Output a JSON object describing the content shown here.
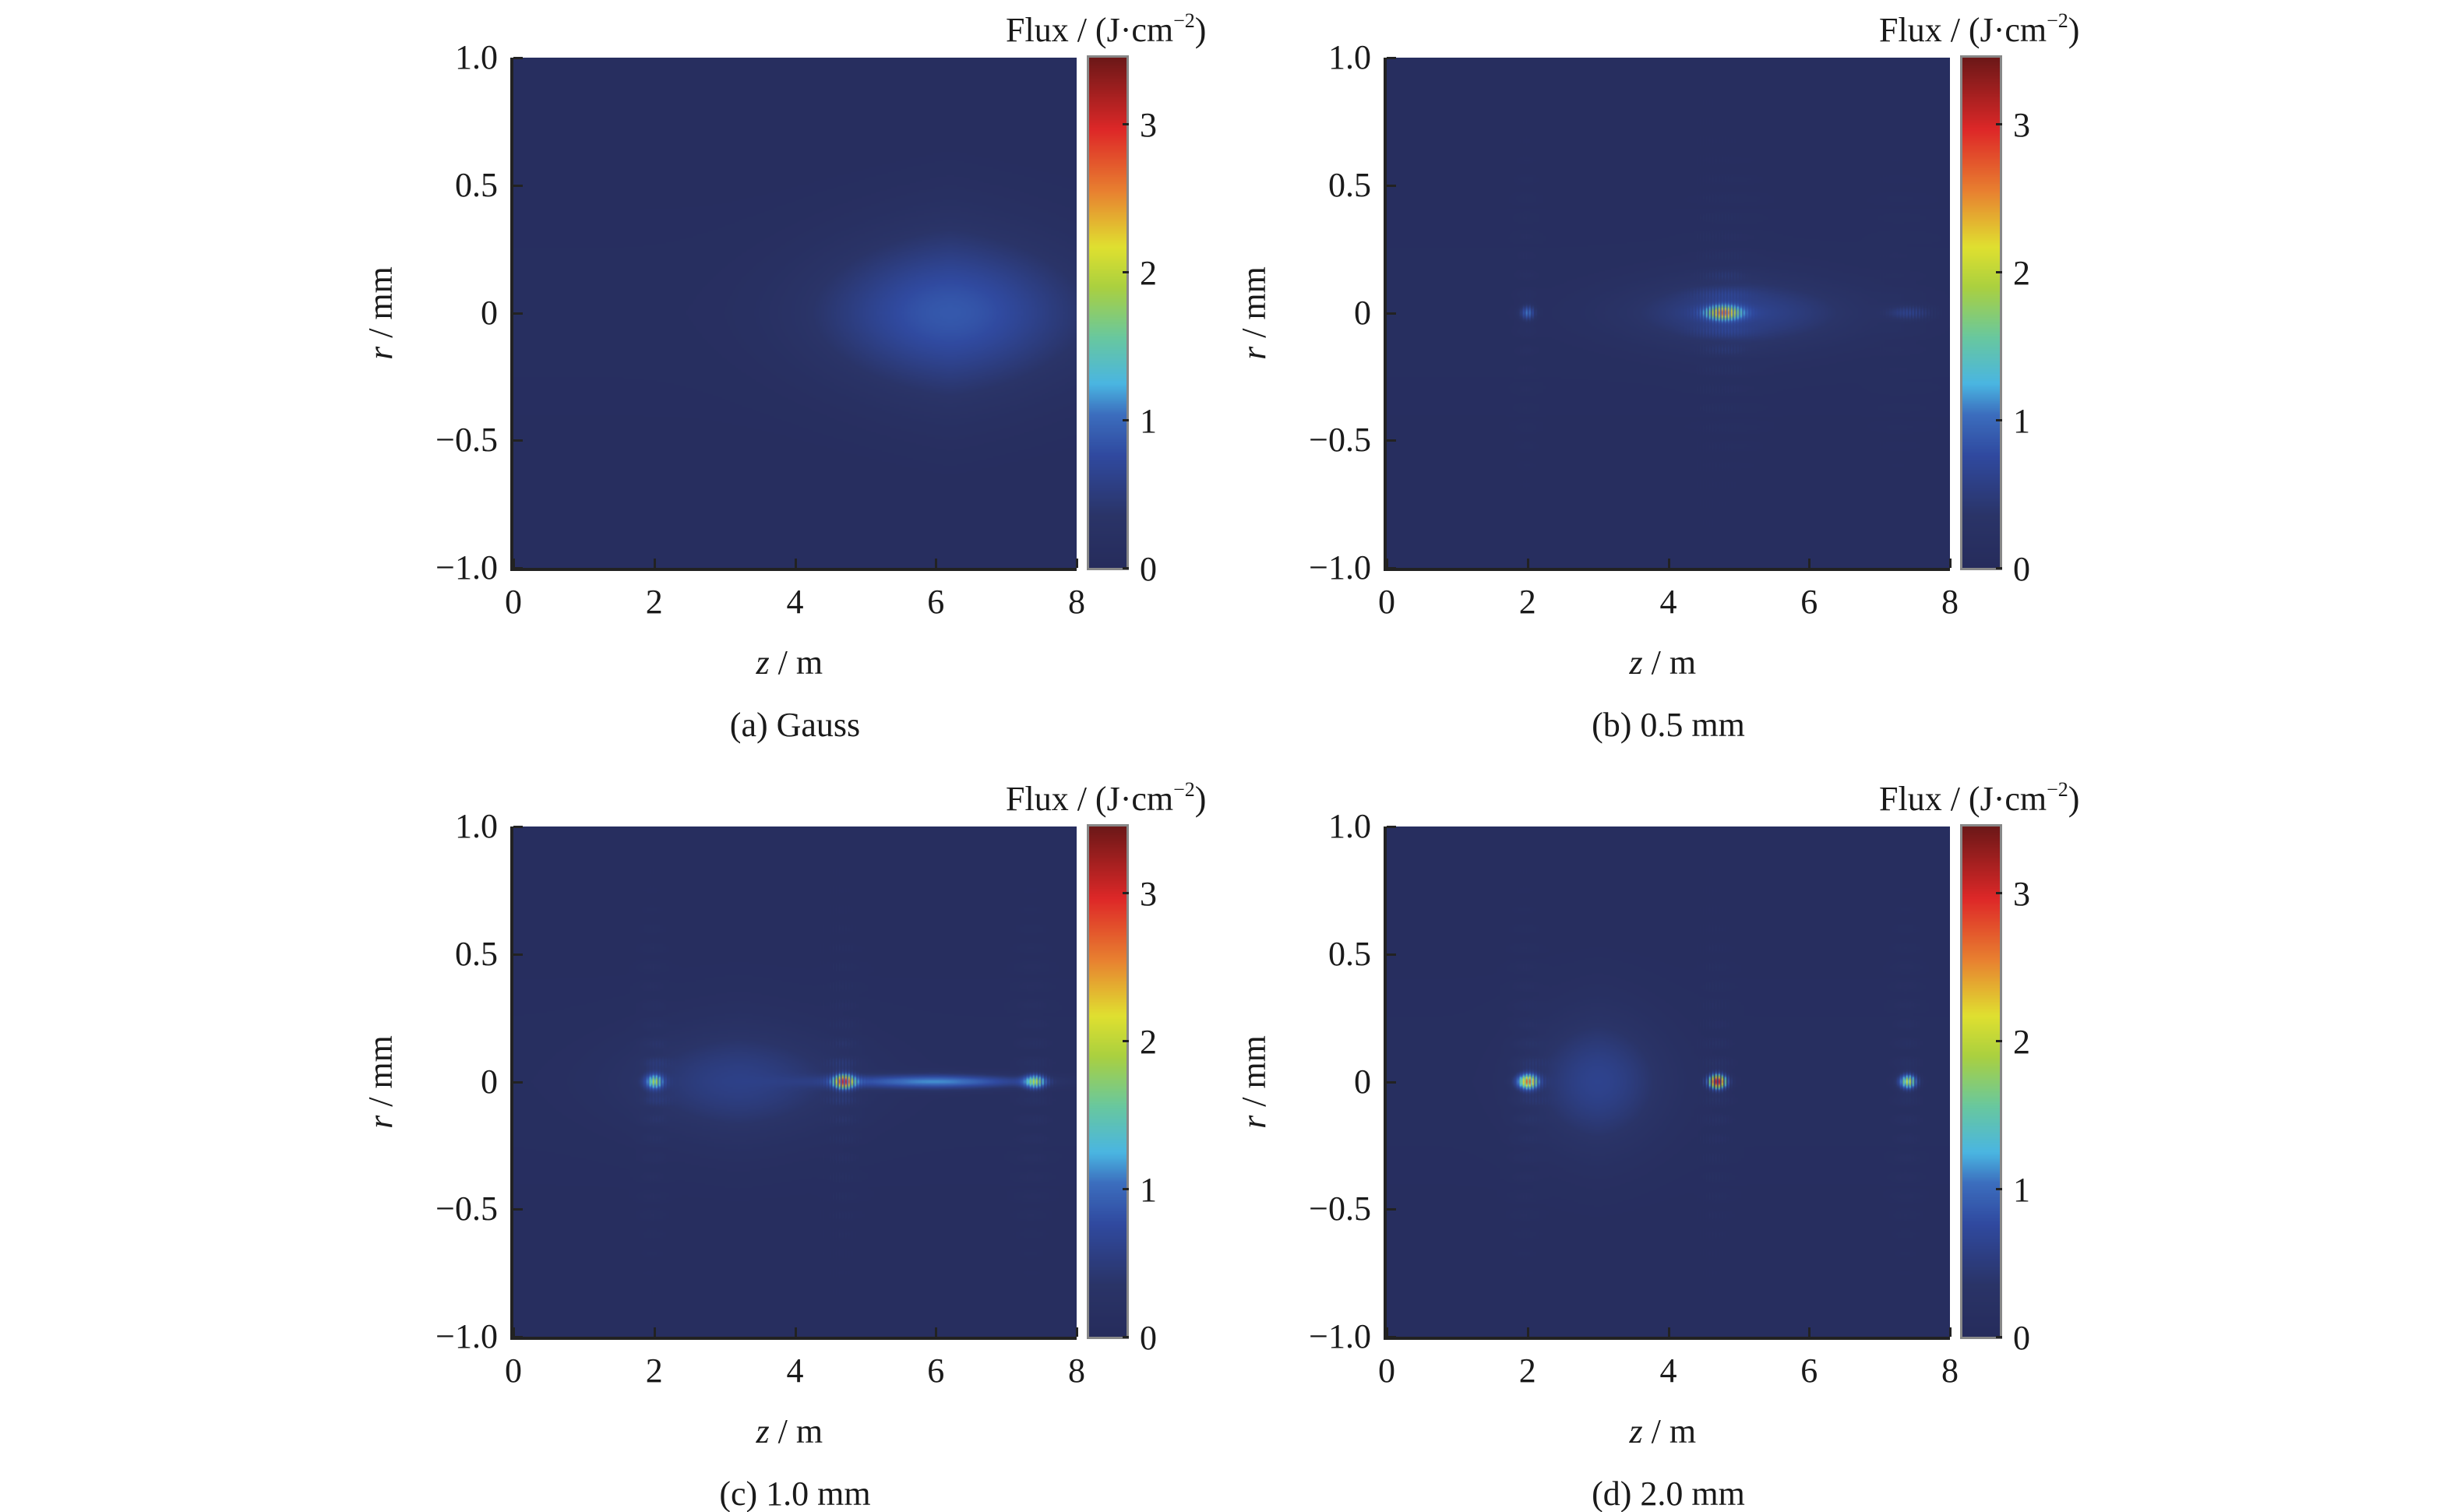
{
  "chart_data": [
    {
      "type": "heatmap",
      "title": "(a) Gauss",
      "xlabel": "z",
      "xunit": "m",
      "ylabel": "r",
      "yunit": "mm",
      "xlim": [
        0,
        8
      ],
      "ylim": [
        -1,
        1
      ],
      "xticks": [
        "0",
        "2",
        "4",
        "6",
        "8"
      ],
      "yticks": [
        "1.0",
        "0.5",
        "0",
        "−0.5",
        "−1.0"
      ],
      "colorbar": {
        "label": "Flux / (J·cm",
        "label_sup": "−2",
        "label_end": ")",
        "range": [
          0,
          3.45
        ],
        "ticks": [
          "0",
          "1",
          "2",
          "3"
        ]
      },
      "features": [
        {
          "z": 6.2,
          "r": 0,
          "peak_flux": 0.75,
          "width_z": 1.8,
          "width_r": 0.22,
          "fringes": false
        }
      ],
      "background_flux": 0.12
    },
    {
      "type": "heatmap",
      "title": "(b) 0.5 mm",
      "xlabel": "z",
      "xunit": "m",
      "ylabel": "r",
      "yunit": "mm",
      "xlim": [
        0,
        8
      ],
      "ylim": [
        -1,
        1
      ],
      "xticks": [
        "0",
        "2",
        "4",
        "6",
        "8"
      ],
      "yticks": [
        "1.0",
        "0.5",
        "0",
        "−0.5",
        "−1.0"
      ],
      "colorbar": {
        "label": "Flux / (J·cm",
        "label_sup": "−2",
        "label_end": ")",
        "range": [
          0,
          3.45
        ],
        "ticks": [
          "0",
          "1",
          "2",
          "3"
        ]
      },
      "features": [
        {
          "z": 2.0,
          "r": 0,
          "peak_flux": 1.2,
          "width_z": 0.1,
          "width_r": 0.03,
          "fringes": true
        },
        {
          "z": 4.8,
          "r": 0,
          "peak_flux": 1.9,
          "width_z": 0.25,
          "width_r": 0.03,
          "fringes": true
        },
        {
          "z": 7.4,
          "r": 0,
          "peak_flux": 0.6,
          "width_z": 0.3,
          "width_r": 0.03,
          "fringes": true
        },
        {
          "z": 5.0,
          "r": 0,
          "peak_flux": 0.5,
          "width_z": 1.6,
          "width_r": 0.1,
          "fringes": false
        }
      ],
      "background_flux": 0.12
    },
    {
      "type": "heatmap",
      "title": "(c) 1.0 mm",
      "xlabel": "z",
      "xunit": "m",
      "ylabel": "r",
      "yunit": "mm",
      "xlim": [
        0,
        8
      ],
      "ylim": [
        -1,
        1
      ],
      "xticks": [
        "0",
        "2",
        "4",
        "6",
        "8"
      ],
      "yticks": [
        "1.0",
        "0.5",
        "0",
        "−0.5",
        "−1.0"
      ],
      "colorbar": {
        "label": "Flux / (J·cm",
        "label_sup": "−2",
        "label_end": ")",
        "range": [
          0,
          3.45
        ],
        "ticks": [
          "0",
          "1",
          "2",
          "3"
        ]
      },
      "features": [
        {
          "z": 2.0,
          "r": 0,
          "peak_flux": 2.0,
          "width_z": 0.12,
          "width_r": 0.03,
          "fringes": true
        },
        {
          "z": 4.7,
          "r": 0,
          "peak_flux": 2.2,
          "width_z": 0.15,
          "width_r": 0.03,
          "fringes": true
        },
        {
          "z": 7.4,
          "r": 0,
          "peak_flux": 2.0,
          "width_z": 0.15,
          "width_r": 0.03,
          "fringes": true
        },
        {
          "z": 6.0,
          "r": 0,
          "peak_flux": 1.0,
          "width_z": 1.3,
          "width_r": 0.02,
          "fringes": false
        },
        {
          "z": 3.2,
          "r": 0,
          "peak_flux": 0.45,
          "width_z": 1.5,
          "width_r": 0.15,
          "fringes": false
        }
      ],
      "background_flux": 0.12
    },
    {
      "type": "heatmap",
      "title": "(d) 2.0 mm",
      "xlabel": "z",
      "xunit": "m",
      "ylabel": "r",
      "yunit": "mm",
      "xlim": [
        0,
        8
      ],
      "ylim": [
        -1,
        1
      ],
      "xticks": [
        "0",
        "2",
        "4",
        "6",
        "8"
      ],
      "yticks": [
        "1.0",
        "0.5",
        "0",
        "−0.5",
        "−1.0"
      ],
      "colorbar": {
        "label": "Flux / (J·cm",
        "label_sup": "−2",
        "label_end": ")",
        "range": [
          0,
          3.45
        ],
        "ticks": [
          "0",
          "1",
          "2",
          "3"
        ]
      },
      "features": [
        {
          "z": 2.0,
          "r": 0,
          "peak_flux": 3.3,
          "width_z": 0.14,
          "width_r": 0.03,
          "fringes": true
        },
        {
          "z": 4.7,
          "r": 0,
          "peak_flux": 2.8,
          "width_z": 0.13,
          "width_r": 0.03,
          "fringes": true
        },
        {
          "z": 7.4,
          "r": 0,
          "peak_flux": 2.6,
          "width_z": 0.12,
          "width_r": 0.03,
          "fringes": true
        },
        {
          "z": 3.0,
          "r": 0,
          "peak_flux": 0.5,
          "width_z": 0.9,
          "width_r": 0.18,
          "fringes": false
        }
      ],
      "background_flux": 0.12
    }
  ]
}
